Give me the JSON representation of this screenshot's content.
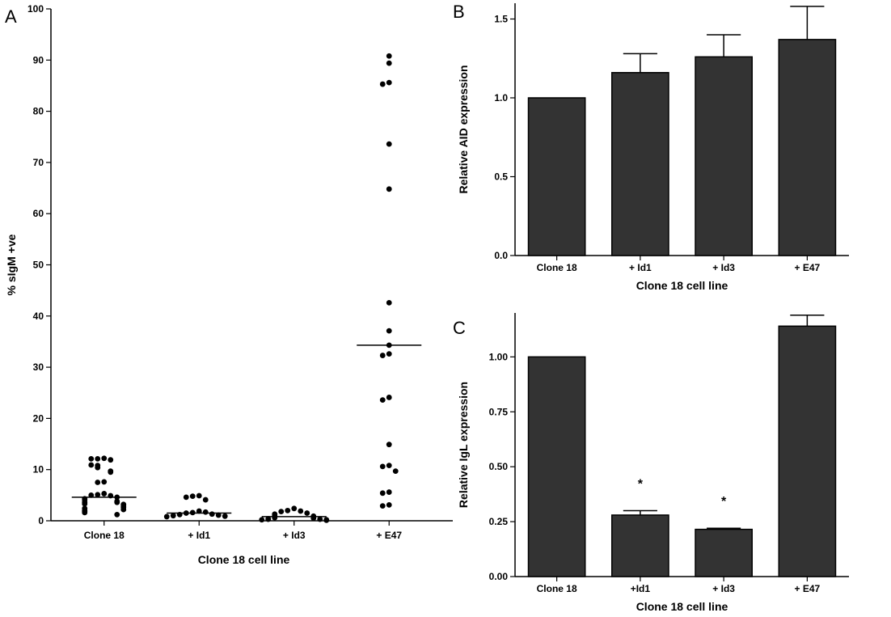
{
  "figure": {
    "panel_labels": [
      "A",
      "B",
      "C"
    ]
  },
  "chart_data": [
    {
      "panel": "A",
      "type": "scatter",
      "xlabel": "Clone 18 cell line",
      "ylabel": "% sIgM +ve",
      "ylim": [
        0,
        100
      ],
      "yticks": [
        0,
        10,
        20,
        30,
        40,
        50,
        60,
        70,
        80,
        90,
        100
      ],
      "categories": [
        "Clone 18",
        "+ Id1",
        "+ Id3",
        "+ E47"
      ],
      "groups": [
        {
          "category": "Clone 18",
          "mean": 4.6,
          "points": [
            12.2,
            12.1,
            11.9,
            12.1,
            10.8,
            10.4,
            10.9,
            9.7,
            9.5,
            7.6,
            7.5,
            5.3,
            5.1,
            4.9,
            5.0,
            4.6,
            4.3,
            4.1,
            3.8,
            3.6,
            3.6,
            3.3,
            3.2,
            3.1,
            2.8,
            2.6,
            2.4,
            2.2,
            2.0,
            1.8,
            1.6,
            1.2
          ]
        },
        {
          "category": "+ Id1",
          "mean": 1.5,
          "points": [
            4.9,
            4.8,
            4.1,
            4.6,
            1.9,
            1.6,
            1.7,
            1.5,
            1.3,
            1.2,
            1.1,
            1.0,
            0.9,
            0.8
          ]
        },
        {
          "category": "+ Id3",
          "mean": 0.8,
          "points": [
            2.4,
            2.0,
            1.9,
            1.8,
            1.5,
            1.3,
            1.1,
            0.9,
            0.8,
            0.6,
            0.5,
            0.4,
            0.3,
            0.3,
            0.2,
            0.2,
            0.1
          ]
        },
        {
          "category": "+ E47",
          "mean": 34.3,
          "points": [
            90.8,
            89.4,
            85.6,
            85.3,
            73.6,
            64.8,
            42.6,
            37.1,
            34.3,
            32.6,
            32.3,
            24.1,
            23.6,
            14.9,
            10.8,
            10.6,
            9.7,
            5.6,
            5.4,
            3.1,
            2.9
          ]
        }
      ]
    },
    {
      "panel": "B",
      "type": "bar",
      "xlabel": "Clone 18 cell line",
      "ylabel": "Relative AID expression",
      "ylim": [
        0,
        1.6
      ],
      "yticks": [
        "0.0",
        "0.5",
        "1.0",
        "1.5"
      ],
      "categories": [
        "Clone 18",
        "+ Id1",
        "+ Id3",
        "+ E47"
      ],
      "values": [
        1.0,
        1.16,
        1.26,
        1.37
      ],
      "errors": [
        0.0,
        0.12,
        0.14,
        0.21
      ],
      "bar_color": "#333333"
    },
    {
      "panel": "C",
      "type": "bar",
      "xlabel": "Clone 18 cell line",
      "ylabel": "Relative IgL expression",
      "ylim": [
        0,
        1.2
      ],
      "yticks": [
        "0.00",
        "0.25",
        "0.50",
        "0.75",
        "1.00"
      ],
      "categories": [
        "Clone 18",
        "+Id1",
        "+ Id3",
        "+ E47"
      ],
      "values": [
        1.0,
        0.28,
        0.215,
        1.14
      ],
      "errors": [
        0.0,
        0.02,
        0.005,
        0.05
      ],
      "annotations": [
        "",
        "*",
        "*",
        ""
      ],
      "bar_color": "#333333"
    }
  ]
}
